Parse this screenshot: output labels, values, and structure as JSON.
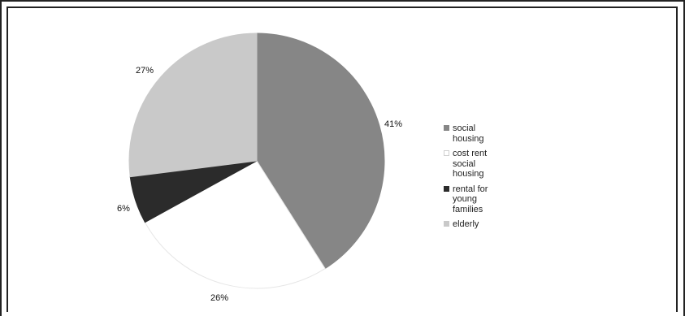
{
  "chart_data": {
    "type": "pie",
    "title": "",
    "categories": [
      "social housing",
      "cost rent social housing",
      "rental for young families",
      "elderly"
    ],
    "values": [
      41,
      26,
      6,
      27
    ],
    "labels": [
      "41%",
      "26%",
      "6%",
      "27%"
    ],
    "colors": [
      "#868686",
      "#ffffff",
      "#2b2b2b",
      "#c9c9c9"
    ],
    "start_angle_deg": 0,
    "direction": "clockwise",
    "legend_position": "right"
  }
}
